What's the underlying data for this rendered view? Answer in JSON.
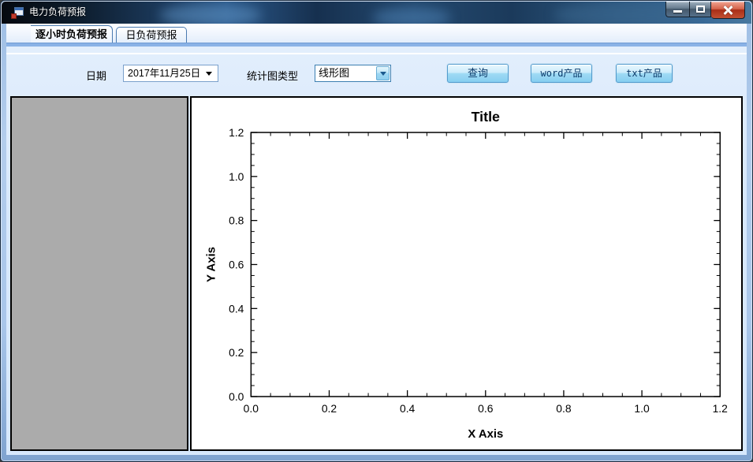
{
  "window": {
    "title": "电力负荷预报",
    "app_icon": "winforms-form-icon",
    "controls": [
      {
        "name": "minimize"
      },
      {
        "name": "maximize"
      },
      {
        "name": "close"
      }
    ]
  },
  "tabs": [
    {
      "label": "逐小时负荷预报",
      "selected": true
    },
    {
      "label": "日负荷预报",
      "selected": false
    }
  ],
  "toolbar": {
    "date_label": "日期",
    "date_value": "2017年11月25日",
    "chart_type_label": "统计图类型",
    "chart_type_value": "线形图",
    "query_button": "查询",
    "word_button": "word产品",
    "txt_button": "txt产品"
  },
  "colors": {
    "accent_blue": "#4a7ab0",
    "content_bg": "#d7e8fc",
    "panel_gray": "#ababab",
    "button_face_top": "#cdecfb",
    "button_face_bottom": "#86cef0",
    "button_text": "#0b3a6a",
    "close_button_red": "#a92e17"
  },
  "chart_data": {
    "type": "line",
    "title": "Title",
    "xlabel": "X Axis",
    "ylabel": "Y Axis",
    "xlim": [
      0.0,
      1.2
    ],
    "ylim": [
      0.0,
      1.2
    ],
    "xticks": [
      0.0,
      0.2,
      0.4,
      0.6,
      0.8,
      1.0,
      1.2
    ],
    "yticks": [
      0.0,
      0.2,
      0.4,
      0.6,
      0.8,
      1.0,
      1.2
    ],
    "tick_label_format": "0.0",
    "minor_tick_interval": 0.05,
    "tick_direction": "in",
    "frame": "box",
    "grid": false,
    "legend": null,
    "series": []
  }
}
